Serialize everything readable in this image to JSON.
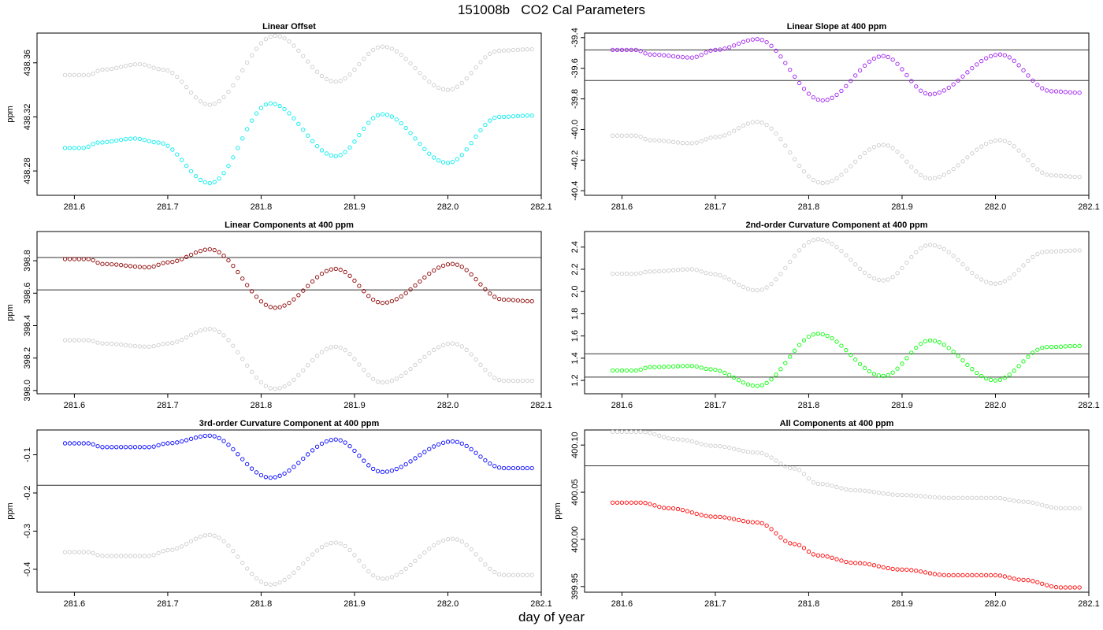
{
  "figure": {
    "title": "151008b   CO2 Cal Parameters",
    "xlabel": "day of year"
  },
  "chart_data": [
    {
      "type": "scatter",
      "title": "Linear Offset",
      "ylabel": "ppm",
      "xlim": [
        281.56,
        282.1
      ],
      "ylim": [
        438.262,
        438.382
      ],
      "xticks": [
        281.6,
        281.7,
        281.8,
        281.9,
        282.0,
        282.1
      ],
      "yticks": [
        438.28,
        438.32,
        438.36
      ],
      "hlines": [],
      "series": [
        {
          "color": "#00eeee",
          "anchors": [
            [
              281.59,
              438.297
            ],
            [
              281.61,
              438.297
            ],
            [
              281.625,
              438.301
            ],
            [
              281.665,
              438.304
            ],
            [
              281.69,
              438.301
            ],
            [
              281.745,
              438.271
            ],
            [
              281.81,
              438.33
            ],
            [
              281.88,
              438.291
            ],
            [
              281.93,
              438.322
            ],
            [
              282.0,
              438.286
            ],
            [
              282.055,
              438.32
            ],
            [
              282.09,
              438.321
            ]
          ]
        },
        {
          "color": "#cccccc",
          "anchors": [
            [
              281.59,
              438.351
            ],
            [
              281.615,
              438.351
            ],
            [
              281.63,
              438.355
            ],
            [
              281.67,
              438.359
            ],
            [
              281.695,
              438.355
            ],
            [
              281.745,
              438.329
            ],
            [
              281.815,
              438.38
            ],
            [
              281.88,
              438.346
            ],
            [
              281.93,
              438.372
            ],
            [
              282.0,
              438.34
            ],
            [
              282.055,
              438.369
            ],
            [
              282.09,
              438.37
            ]
          ]
        }
      ]
    },
    {
      "type": "scatter",
      "title": "Linear Slope at 400 ppm",
      "ylabel": "",
      "xlim": [
        281.56,
        282.1
      ],
      "ylim": [
        -40.43,
        -39.37
      ],
      "xticks": [
        281.6,
        281.7,
        281.8,
        281.9,
        282.0,
        282.1
      ],
      "yticks": [
        -40.4,
        -40.2,
        -40.0,
        -39.8,
        -39.6,
        -39.4
      ],
      "hlines": [
        -39.48,
        -39.68
      ],
      "series": [
        {
          "color": "#a020f0",
          "anchors": [
            [
              281.59,
              -39.48
            ],
            [
              281.615,
              -39.48
            ],
            [
              281.63,
              -39.51
            ],
            [
              281.675,
              -39.53
            ],
            [
              281.7,
              -39.48
            ],
            [
              281.745,
              -39.41
            ],
            [
              281.815,
              -39.81
            ],
            [
              281.88,
              -39.52
            ],
            [
              281.93,
              -39.77
            ],
            [
              282.005,
              -39.51
            ],
            [
              282.06,
              -39.75
            ],
            [
              282.09,
              -39.76
            ]
          ]
        },
        {
          "color": "#cccccc",
          "anchors": [
            [
              281.59,
              -40.04
            ],
            [
              281.615,
              -40.04
            ],
            [
              281.63,
              -40.07
            ],
            [
              281.675,
              -40.09
            ],
            [
              281.7,
              -40.05
            ],
            [
              281.745,
              -39.95
            ],
            [
              281.815,
              -40.35
            ],
            [
              281.88,
              -40.1
            ],
            [
              281.93,
              -40.32
            ],
            [
              282.005,
              -40.07
            ],
            [
              282.06,
              -40.3
            ],
            [
              282.09,
              -40.31
            ]
          ]
        }
      ]
    },
    {
      "type": "scatter",
      "title": "Linear Components at 400 ppm",
      "ylabel": "ppm",
      "xlim": [
        281.56,
        282.1
      ],
      "ylim": [
        397.98,
        398.98
      ],
      "xticks": [
        281.6,
        281.7,
        281.8,
        281.9,
        282.0,
        282.1
      ],
      "yticks": [
        398.0,
        398.2,
        398.4,
        398.6,
        398.8
      ],
      "hlines": [
        398.82,
        398.62
      ],
      "series": [
        {
          "color": "#8b0000",
          "anchors": [
            [
              281.59,
              398.81
            ],
            [
              281.615,
              398.81
            ],
            [
              281.63,
              398.78
            ],
            [
              281.68,
              398.76
            ],
            [
              281.7,
              398.79
            ],
            [
              281.745,
              398.87
            ],
            [
              281.815,
              398.51
            ],
            [
              281.88,
              398.75
            ],
            [
              281.93,
              398.54
            ],
            [
              282.005,
              398.78
            ],
            [
              282.06,
              398.56
            ],
            [
              282.09,
              398.55
            ]
          ]
        },
        {
          "color": "#cccccc",
          "anchors": [
            [
              281.59,
              398.31
            ],
            [
              281.615,
              398.31
            ],
            [
              281.63,
              398.29
            ],
            [
              281.68,
              398.27
            ],
            [
              281.7,
              398.29
            ],
            [
              281.745,
              398.38
            ],
            [
              281.815,
              398.01
            ],
            [
              281.88,
              398.27
            ],
            [
              281.93,
              398.05
            ],
            [
              282.005,
              398.29
            ],
            [
              282.06,
              398.06
            ],
            [
              282.09,
              398.06
            ]
          ]
        }
      ]
    },
    {
      "type": "scatter",
      "title": "2nd-order Curvature Component at 400 ppm",
      "ylabel": "",
      "xlim": [
        281.56,
        282.1
      ],
      "ylim": [
        1.08,
        2.54
      ],
      "xticks": [
        281.6,
        281.7,
        281.8,
        281.9,
        282.0,
        282.1
      ],
      "yticks": [
        1.2,
        1.4,
        1.6,
        1.8,
        2.0,
        2.2,
        2.4
      ],
      "hlines": [
        1.44,
        1.23
      ],
      "series": [
        {
          "color": "#00ff00",
          "anchors": [
            [
              281.59,
              1.29
            ],
            [
              281.615,
              1.29
            ],
            [
              281.63,
              1.32
            ],
            [
              281.675,
              1.33
            ],
            [
              281.695,
              1.3
            ],
            [
              281.745,
              1.15
            ],
            [
              281.81,
              1.62
            ],
            [
              281.88,
              1.24
            ],
            [
              281.93,
              1.56
            ],
            [
              282.0,
              1.2
            ],
            [
              282.055,
              1.5
            ],
            [
              282.09,
              1.51
            ]
          ]
        },
        {
          "color": "#cccccc",
          "anchors": [
            [
              281.59,
              2.16
            ],
            [
              281.615,
              2.16
            ],
            [
              281.63,
              2.18
            ],
            [
              281.675,
              2.2
            ],
            [
              281.695,
              2.16
            ],
            [
              281.745,
              2.01
            ],
            [
              281.81,
              2.47
            ],
            [
              281.88,
              2.1
            ],
            [
              281.93,
              2.42
            ],
            [
              282.0,
              2.07
            ],
            [
              282.055,
              2.36
            ],
            [
              282.09,
              2.37
            ]
          ]
        }
      ]
    },
    {
      "type": "scatter",
      "title": "3rd-order Curvature Component at 400 ppm",
      "ylabel": "ppm",
      "xlim": [
        281.56,
        282.1
      ],
      "ylim": [
        -0.46,
        -0.035
      ],
      "xticks": [
        281.6,
        281.7,
        281.8,
        281.9,
        282.0,
        282.1
      ],
      "yticks": [
        -0.4,
        -0.3,
        -0.2,
        -0.1
      ],
      "hlines": [
        -0.18
      ],
      "series": [
        {
          "color": "#0000ff",
          "anchors": [
            [
              281.59,
              -0.07
            ],
            [
              281.615,
              -0.07
            ],
            [
              281.63,
              -0.08
            ],
            [
              281.68,
              -0.08
            ],
            [
              281.7,
              -0.07
            ],
            [
              281.745,
              -0.05
            ],
            [
              281.81,
              -0.16
            ],
            [
              281.88,
              -0.06
            ],
            [
              281.93,
              -0.145
            ],
            [
              282.005,
              -0.065
            ],
            [
              282.06,
              -0.135
            ],
            [
              282.09,
              -0.135
            ]
          ]
        },
        {
          "color": "#cccccc",
          "anchors": [
            [
              281.59,
              -0.355
            ],
            [
              281.615,
              -0.355
            ],
            [
              281.63,
              -0.365
            ],
            [
              281.68,
              -0.365
            ],
            [
              281.7,
              -0.35
            ],
            [
              281.745,
              -0.31
            ],
            [
              281.81,
              -0.44
            ],
            [
              281.88,
              -0.33
            ],
            [
              281.93,
              -0.425
            ],
            [
              282.005,
              -0.32
            ],
            [
              282.06,
              -0.415
            ],
            [
              282.09,
              -0.415
            ]
          ]
        }
      ]
    },
    {
      "type": "scatter",
      "title": "All Components at 400 ppm",
      "ylabel": "ppm",
      "xlim": [
        281.56,
        282.1
      ],
      "ylim": [
        399.944,
        400.116
      ],
      "xticks": [
        281.6,
        281.7,
        281.8,
        281.9,
        282.0,
        282.1
      ],
      "yticks": [
        399.95,
        400.0,
        400.05,
        400.1
      ],
      "hlines": [
        400.078
      ],
      "series": [
        {
          "color": "#ff0000",
          "anchors": [
            [
              281.59,
              400.039
            ],
            [
              281.62,
              400.039
            ],
            [
              281.65,
              400.033
            ],
            [
              281.7,
              400.024
            ],
            [
              281.745,
              400.018
            ],
            [
              281.785,
              399.995
            ],
            [
              281.81,
              399.983
            ],
            [
              281.85,
              399.975
            ],
            [
              281.9,
              399.968
            ],
            [
              281.95,
              399.962
            ],
            [
              282.0,
              399.962
            ],
            [
              282.03,
              399.957
            ],
            [
              282.07,
              399.949
            ],
            [
              282.09,
              399.949
            ]
          ]
        },
        {
          "color": "#cccccc",
          "anchors": [
            [
              281.59,
              400.114
            ],
            [
              281.62,
              400.114
            ],
            [
              281.66,
              400.106
            ],
            [
              281.7,
              400.099
            ],
            [
              281.745,
              400.092
            ],
            [
              281.785,
              400.075
            ],
            [
              281.81,
              400.059
            ],
            [
              281.85,
              400.052
            ],
            [
              281.9,
              400.047
            ],
            [
              281.95,
              400.044
            ],
            [
              282.0,
              400.044
            ],
            [
              282.03,
              400.04
            ],
            [
              282.07,
              400.033
            ],
            [
              282.09,
              400.033
            ]
          ]
        }
      ]
    }
  ]
}
